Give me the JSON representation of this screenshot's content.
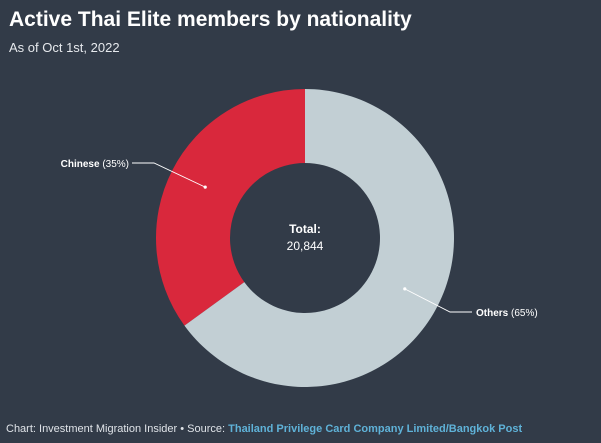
{
  "header": {
    "title": "Active Thai Elite members by nationality",
    "subtitle": "As of Oct 1st, 2022"
  },
  "chart_data": {
    "type": "pie",
    "donut": true,
    "slices": [
      {
        "label": "Chinese",
        "percent_label": "(35%)",
        "value": 35,
        "color": "#d9283c"
      },
      {
        "label": "Others",
        "percent_label": "(65%)",
        "value": 65,
        "color": "#c2cfd4"
      }
    ],
    "center": {
      "title": "Total:",
      "value": "20,844"
    }
  },
  "footer": {
    "prefix": "Chart: Investment Migration Insider • Source: ",
    "source": "Thailand Privilege Card Company Limited/Bangkok Post"
  }
}
